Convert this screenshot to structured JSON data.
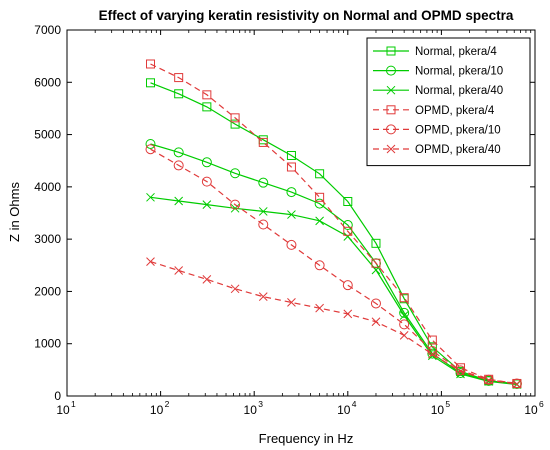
{
  "chart_data": {
    "type": "line",
    "title": "Effect of varying keratin resistivity on Normal and OPMD spectra",
    "xlabel": "Frequency in Hz",
    "ylabel": "Z in Ohms",
    "xscale": "log",
    "xlim": [
      10,
      1000000
    ],
    "ylim": [
      0,
      7000
    ],
    "xticks": [
      {
        "base": "10",
        "exp": "1"
      },
      {
        "base": "10",
        "exp": "2"
      },
      {
        "base": "10",
        "exp": "3"
      },
      {
        "base": "10",
        "exp": "4"
      },
      {
        "base": "10",
        "exp": "5"
      },
      {
        "base": "10",
        "exp": "6"
      }
    ],
    "yticks": [
      "0",
      "1000",
      "2000",
      "3000",
      "4000",
      "5000",
      "6000",
      "7000"
    ],
    "legend_position": "top-right",
    "grid": false,
    "x": [
      78,
      156,
      312,
      625,
      1250,
      2500,
      5000,
      10000,
      20000,
      40000,
      80000,
      160000,
      320000,
      640000
    ],
    "series": [
      {
        "name": "Normal, pkera/4",
        "color": "#00cc00",
        "dash": "solid",
        "marker": "square",
        "values": [
          5990,
          5780,
          5530,
          5200,
          4900,
          4600,
          4250,
          3720,
          2920,
          1860,
          940,
          470,
          290,
          230
        ]
      },
      {
        "name": "Normal, pkera/10",
        "color": "#00cc00",
        "dash": "solid",
        "marker": "circle",
        "values": [
          4820,
          4660,
          4470,
          4260,
          4080,
          3900,
          3680,
          3270,
          2540,
          1590,
          810,
          440,
          290,
          230
        ]
      },
      {
        "name": "Normal, pkera/40",
        "color": "#00cc00",
        "dash": "solid",
        "marker": "x",
        "values": [
          3800,
          3730,
          3660,
          3590,
          3530,
          3470,
          3350,
          3050,
          2410,
          1540,
          770,
          420,
          280,
          220
        ]
      },
      {
        "name": "OPMD, pkera/4",
        "color": "#e03a3a",
        "dash": "dashed",
        "marker": "square",
        "values": [
          6350,
          6090,
          5760,
          5320,
          4850,
          4380,
          3800,
          3150,
          2540,
          1880,
          1070,
          540,
          320,
          240
        ]
      },
      {
        "name": "OPMD, pkera/10",
        "color": "#e03a3a",
        "dash": "dashed",
        "marker": "circle",
        "values": [
          4720,
          4410,
          4100,
          3660,
          3280,
          2890,
          2500,
          2120,
          1770,
          1370,
          860,
          490,
          310,
          240
        ]
      },
      {
        "name": "OPMD, pkera/40",
        "color": "#e03a3a",
        "dash": "dashed",
        "marker": "x",
        "values": [
          2570,
          2400,
          2230,
          2050,
          1900,
          1790,
          1680,
          1570,
          1420,
          1160,
          800,
          470,
          300,
          230
        ]
      }
    ]
  }
}
